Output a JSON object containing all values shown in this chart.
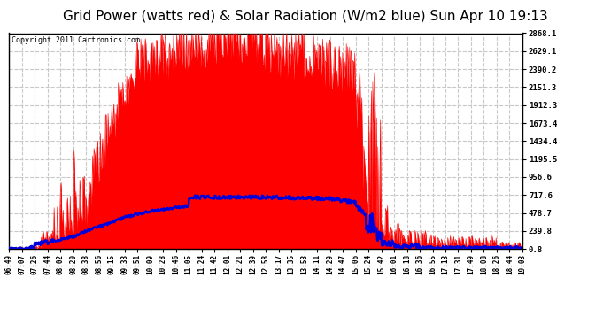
{
  "title": "Grid Power (watts red) & Solar Radiation (W/m2 blue) Sun Apr 10 19:13",
  "copyright": "Copyright 2011 Cartronics.com",
  "yticks": [
    0.8,
    239.8,
    478.7,
    717.6,
    956.6,
    1195.5,
    1434.4,
    1673.4,
    1912.3,
    2151.3,
    2390.2,
    2629.1,
    2868.1
  ],
  "ymin": 0.8,
  "ymax": 2868.1,
  "xtick_labels": [
    "06:49",
    "07:07",
    "07:26",
    "07:44",
    "08:02",
    "08:20",
    "08:38",
    "08:56",
    "09:15",
    "09:33",
    "09:51",
    "10:09",
    "10:28",
    "10:46",
    "11:05",
    "11:24",
    "11:42",
    "12:01",
    "12:21",
    "12:39",
    "12:58",
    "13:17",
    "13:35",
    "13:53",
    "14:11",
    "14:29",
    "14:47",
    "15:06",
    "15:24",
    "15:42",
    "16:01",
    "16:18",
    "16:36",
    "16:55",
    "17:13",
    "17:31",
    "17:49",
    "18:08",
    "18:26",
    "18:44",
    "19:03"
  ],
  "background_color": "#ffffff",
  "plot_bg_color": "#ffffff",
  "grid_color": "#c8c8c8",
  "title_fontsize": 11,
  "red_color": "#ff0000",
  "blue_color": "#0000dd"
}
